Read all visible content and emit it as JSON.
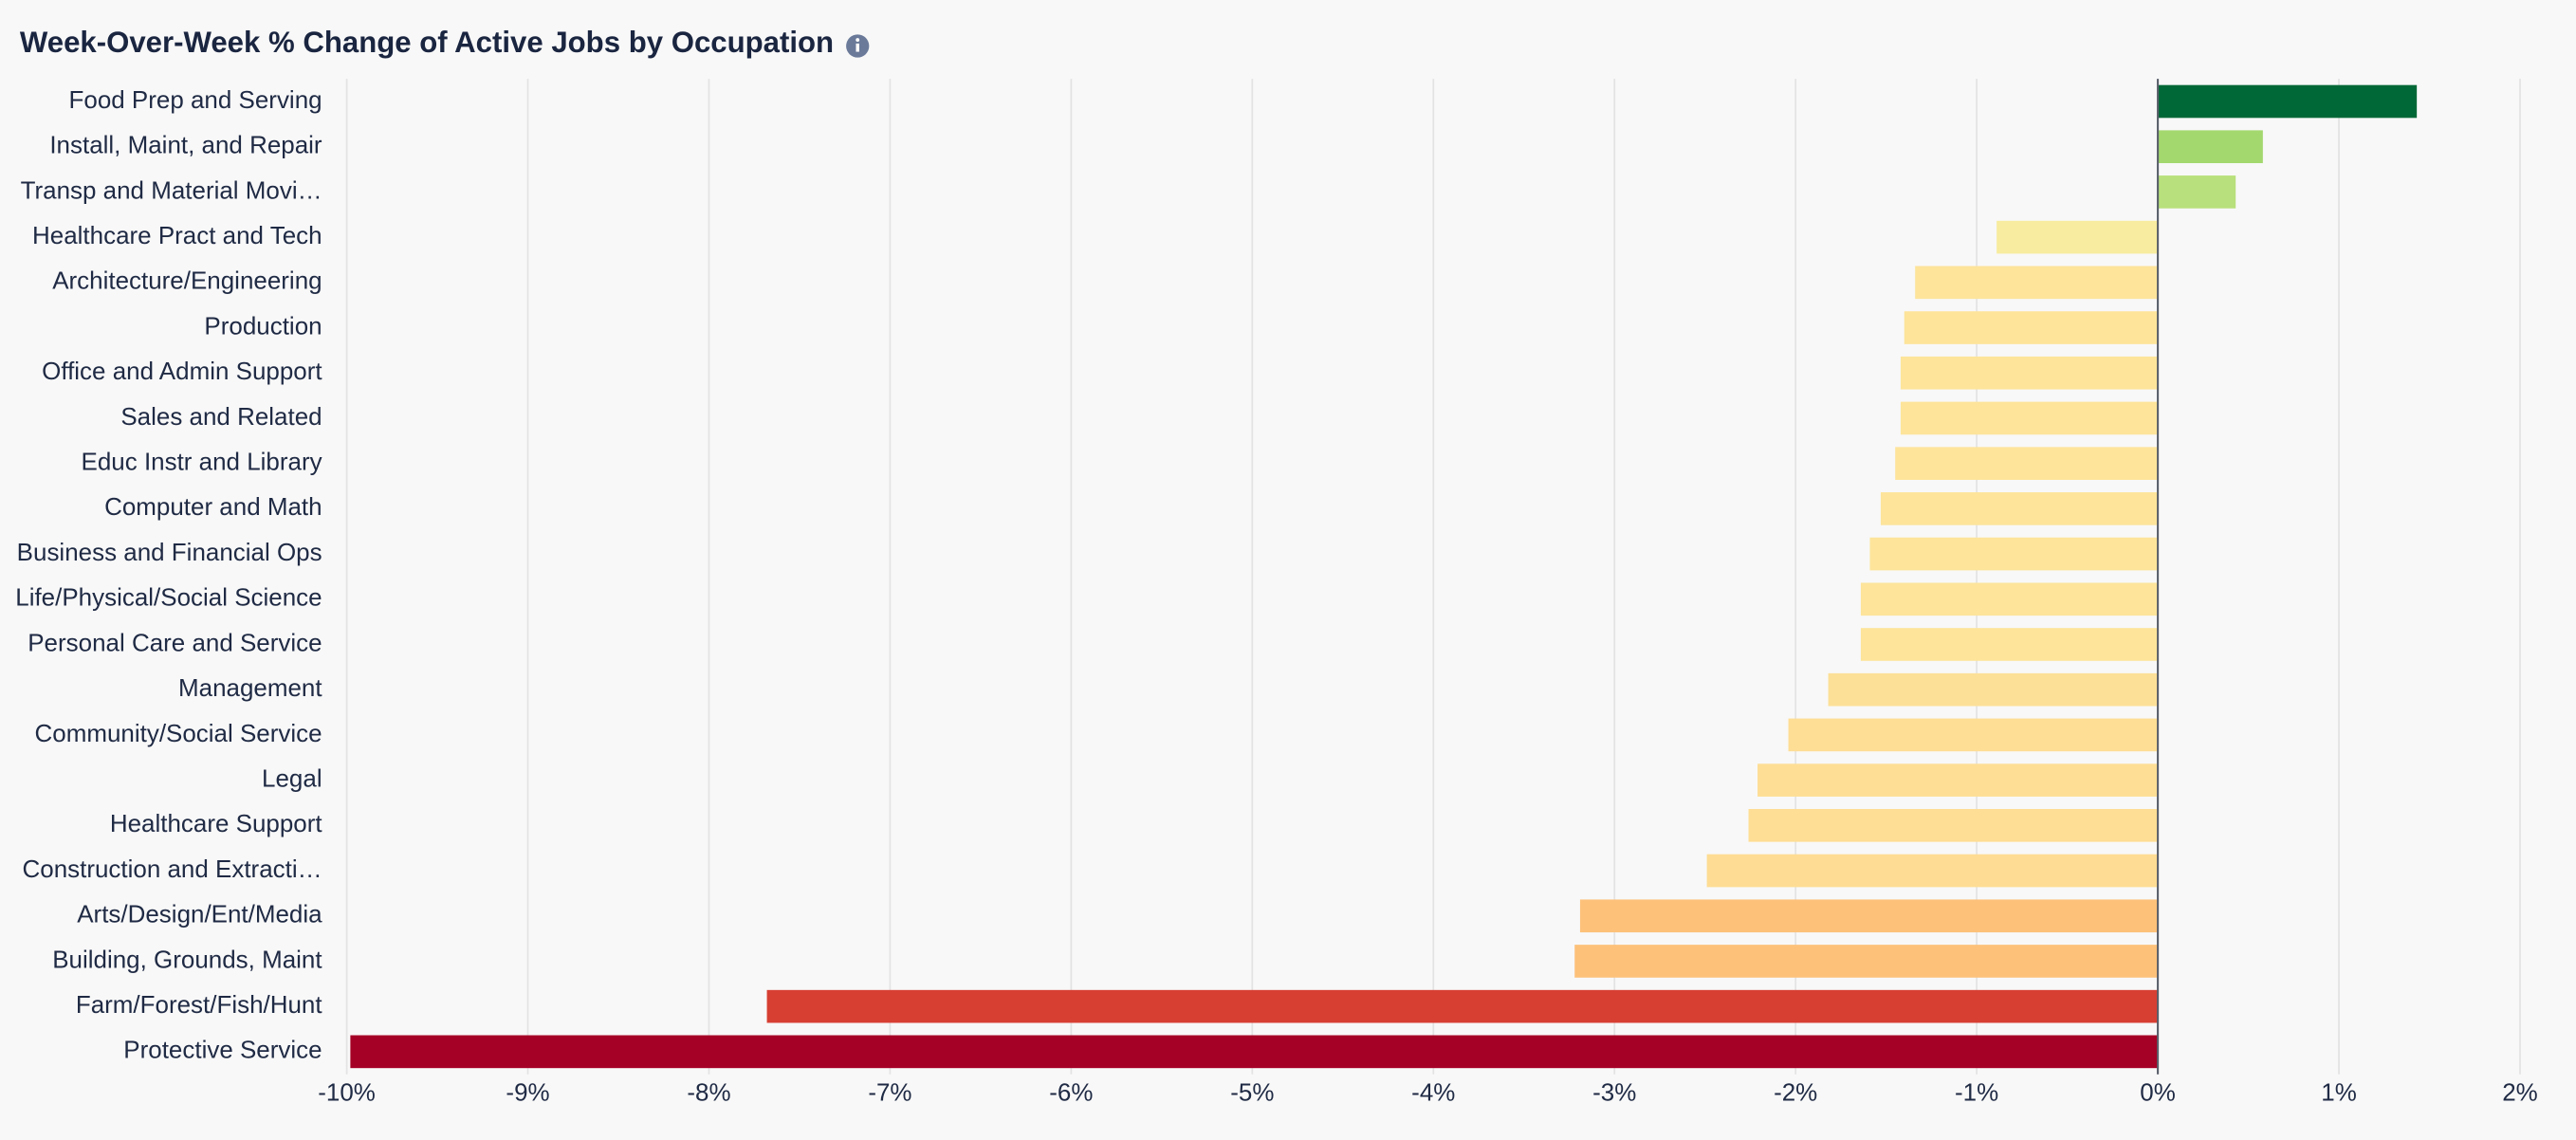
{
  "chart_data": {
    "type": "barh",
    "title": "Week-Over-Week % Change of Active Jobs by Occupation",
    "categories": [
      "Food Prep and Serving",
      "Install, Maint, and Repair",
      "Transp and Material Movi…",
      "Healthcare Pract and Tech",
      "Architecture/Engineering",
      "Production",
      "Office and Admin Support",
      "Sales and Related",
      "Educ Instr and Library",
      "Computer and Math",
      "Business and Financial Ops",
      "Life/Physical/Social Science",
      "Personal Care and Service",
      "Management",
      "Community/Social Service",
      "Legal",
      "Healthcare Support",
      "Construction and Extracti…",
      "Arts/Design/Ent/Media",
      "Building, Grounds, Maint",
      "Farm/Forest/Fish/Hunt",
      "Protective Service"
    ],
    "values": [
      1.43,
      0.58,
      0.43,
      -0.89,
      -1.34,
      -1.4,
      -1.42,
      -1.42,
      -1.45,
      -1.53,
      -1.59,
      -1.64,
      -1.64,
      -1.82,
      -2.04,
      -2.21,
      -2.26,
      -2.49,
      -3.19,
      -3.22,
      -7.68,
      -9.98
    ],
    "colors": [
      "#006837",
      "#a3d86e",
      "#b8e07c",
      "#f7ec9f",
      "#fde49a",
      "#fde49a",
      "#fde49a",
      "#fde49a",
      "#fde49a",
      "#fde49a",
      "#fde49a",
      "#fde49a",
      "#fde49a",
      "#fde098",
      "#fede95",
      "#fede95",
      "#fede95",
      "#fedc93",
      "#fdc17a",
      "#fdc17a",
      "#d73f33",
      "#a50026"
    ],
    "xlim": [
      -10,
      2
    ],
    "xticks": [
      {
        "value": -10,
        "label": "-10%"
      },
      {
        "value": -9,
        "label": "-9%"
      },
      {
        "value": -8,
        "label": "-8%"
      },
      {
        "value": -7,
        "label": "-7%"
      },
      {
        "value": -6,
        "label": "-6%"
      },
      {
        "value": -5,
        "label": "-5%"
      },
      {
        "value": -4,
        "label": "-4%"
      },
      {
        "value": -3,
        "label": "-3%"
      },
      {
        "value": -2,
        "label": "-2%"
      },
      {
        "value": -1,
        "label": "-1%"
      },
      {
        "value": 0,
        "label": "0%"
      },
      {
        "value": 1,
        "label": "1%"
      },
      {
        "value": 2,
        "label": "2%"
      }
    ],
    "grid": true
  }
}
